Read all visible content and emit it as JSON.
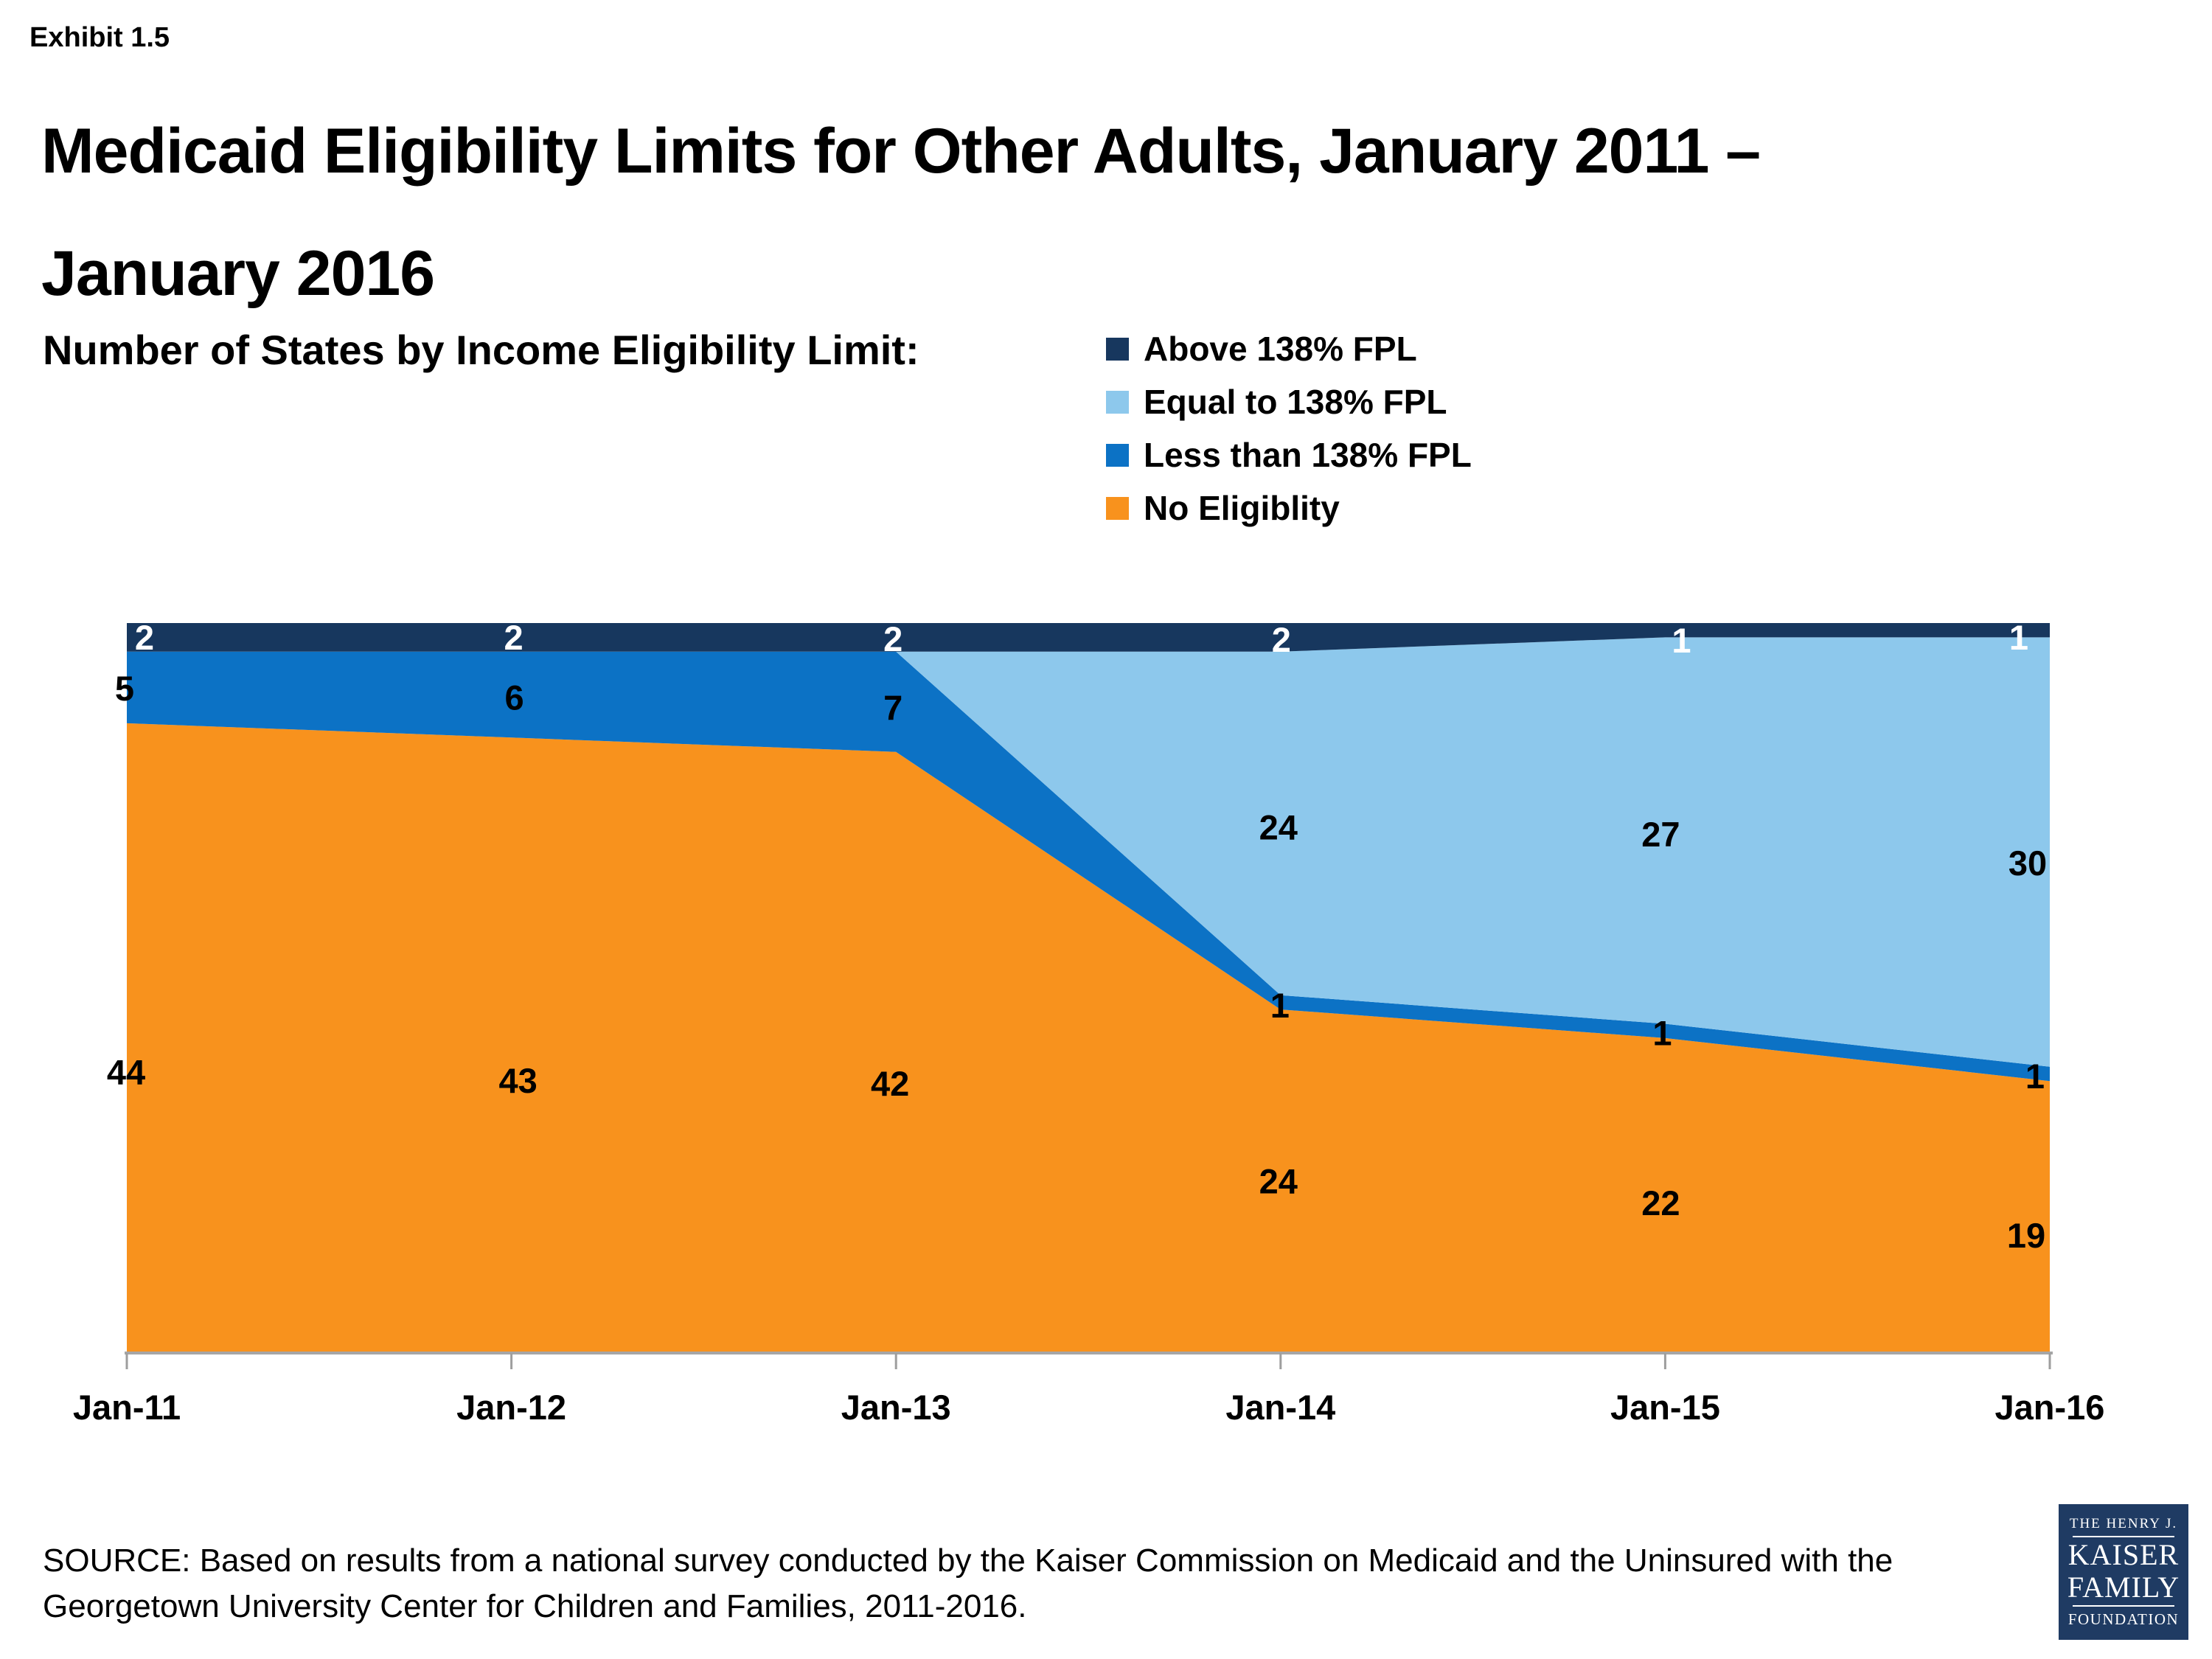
{
  "page": {
    "exhibit": "Exhibit 1.5",
    "title_line1": "Medicaid Eligibility Limits for Other Adults, January 2011 –",
    "title_line2": "January 2016",
    "subtitle": "Number of States by Income Eligibility Limit:"
  },
  "legend": {
    "items": [
      {
        "label": "Above 138% FPL",
        "color": "#17375E"
      },
      {
        "label": "Equal to 138% FPL",
        "color": "#8DC8EC"
      },
      {
        "label": "Less than 138% FPL",
        "color": "#0C72C5"
      },
      {
        "label": "No Eligiblity",
        "color": "#F8921D"
      }
    ]
  },
  "chart_data": {
    "type": "area",
    "stacked": true,
    "title": "Number of States by Income Eligibility Limit:",
    "categories": [
      "Jan-11",
      "Jan-12",
      "Jan-13",
      "Jan-14",
      "Jan-15",
      "Jan-16"
    ],
    "series": [
      {
        "key": "no_elig",
        "name": "No Eligiblity",
        "color": "#F8921D",
        "label_color": "#000000",
        "values": [
          44,
          43,
          42,
          24,
          22,
          19
        ]
      },
      {
        "key": "less",
        "name": "Less than 138% FPL",
        "color": "#0C72C5",
        "label_color": "#000000",
        "values": [
          5,
          6,
          7,
          1,
          1,
          1
        ]
      },
      {
        "key": "equal",
        "name": "Equal to 138% FPL",
        "color": "#8DC8EC",
        "label_color": "#000000",
        "values": [
          0,
          0,
          0,
          24,
          27,
          30
        ]
      },
      {
        "key": "above",
        "name": "Above 138% FPL",
        "color": "#17375E",
        "label_color": "#FFFFFF",
        "values": [
          2,
          2,
          2,
          2,
          1,
          1
        ]
      }
    ],
    "ylim": [
      0,
      51
    ],
    "xlabel": "",
    "ylabel": "",
    "gridlines": false,
    "legend_position": "top-right",
    "axis_color": "#A6A6A6",
    "tick_color": "#9E9E9E"
  },
  "source": {
    "line1": "SOURCE:  Based on results from a national survey conducted by the Kaiser Commission on Medicaid and the Uninsured with the",
    "line2": "Georgetown University Center for Children and Families, 2011-2016."
  },
  "logo": {
    "line1": "THE HENRY J.",
    "line2": "KAISER",
    "line3": "FAMILY",
    "line4": "FOUNDATION",
    "bg_color": "#1F3B63"
  }
}
